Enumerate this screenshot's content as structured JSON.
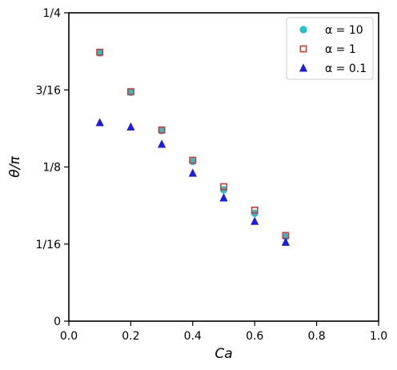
{
  "chart_data": {
    "type": "scatter",
    "title": "",
    "xlabel": "Ca",
    "ylabel": "θ/π",
    "xlim": [
      0,
      1
    ],
    "ylim": [
      0,
      0.25
    ],
    "xticks": [
      0,
      0.2,
      0.4,
      0.6,
      0.8,
      1.0
    ],
    "xtick_labels": [
      "0.0",
      "0.2",
      "0.4",
      "0.6",
      "0.8",
      "1.0"
    ],
    "yticks": [
      0,
      0.0625,
      0.125,
      0.1875,
      0.25
    ],
    "ytick_labels": [
      "0",
      "1/16",
      "1/8",
      "3/16",
      "1/4"
    ],
    "grid": false,
    "legend_position": "top-right",
    "series": [
      {
        "name": "α = 10",
        "marker": "circle",
        "color": "#1fc4c8",
        "x": [
          0.1,
          0.2,
          0.3,
          0.4,
          0.5,
          0.6,
          0.7
        ],
        "y": [
          0.2175,
          0.1855,
          0.1545,
          0.1295,
          0.1065,
          0.0875,
          0.0685
        ]
      },
      {
        "name": "α = 1",
        "marker": "square-open",
        "color": "#e03131",
        "x": [
          0.1,
          0.2,
          0.3,
          0.4,
          0.5,
          0.6,
          0.7
        ],
        "y": [
          0.218,
          0.186,
          0.155,
          0.1305,
          0.109,
          0.09,
          0.0695
        ]
      },
      {
        "name": "α = 0.1",
        "marker": "triangle",
        "color": "#1a1aee",
        "x": [
          0.1,
          0.2,
          0.3,
          0.4,
          0.5,
          0.6,
          0.7
        ],
        "y": [
          0.161,
          0.1575,
          0.1435,
          0.12,
          0.1,
          0.081,
          0.064
        ]
      }
    ]
  }
}
